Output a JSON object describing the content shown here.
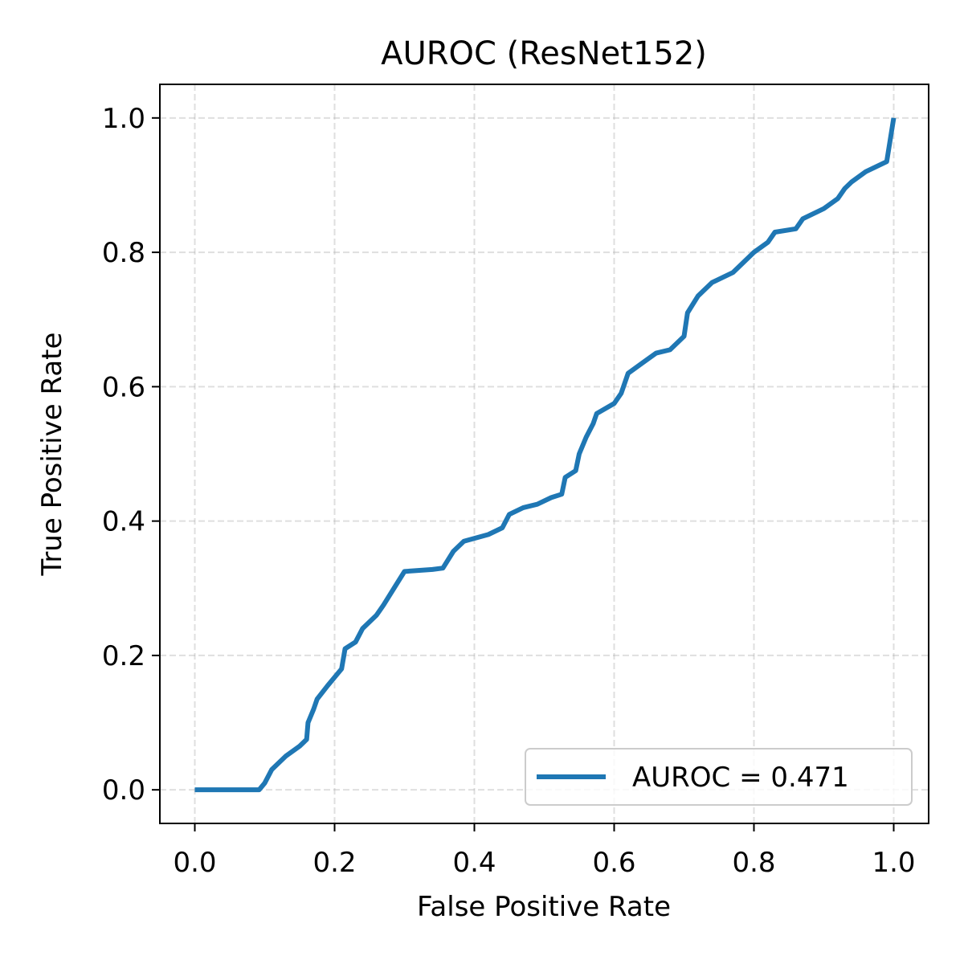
{
  "chart_data": {
    "type": "line",
    "title": "AUROC (ResNet152)",
    "xlabel": "False Positive Rate",
    "ylabel": "True Positive Rate",
    "x": [
      0,
      0.092,
      0.1,
      0.11,
      0.13,
      0.15,
      0.16,
      0.162,
      0.17,
      0.175,
      0.19,
      0.21,
      0.215,
      0.23,
      0.24,
      0.26,
      0.27,
      0.285,
      0.3,
      0.34,
      0.355,
      0.37,
      0.385,
      0.42,
      0.44,
      0.45,
      0.47,
      0.49,
      0.51,
      0.525,
      0.53,
      0.545,
      0.55,
      0.56,
      0.57,
      0.575,
      0.6,
      0.61,
      0.62,
      0.64,
      0.66,
      0.68,
      0.7,
      0.705,
      0.72,
      0.74,
      0.77,
      0.8,
      0.82,
      0.83,
      0.86,
      0.87,
      0.9,
      0.92,
      0.93,
      0.94,
      0.96,
      0.99,
      1.0
    ],
    "series": [
      {
        "name": "AUROC = 0.471",
        "color": "#1f77b4",
        "values": [
          0,
          0,
          0.01,
          0.03,
          0.05,
          0.065,
          0.075,
          0.1,
          0.12,
          0.135,
          0.155,
          0.18,
          0.21,
          0.22,
          0.24,
          0.26,
          0.275,
          0.3,
          0.325,
          0.328,
          0.33,
          0.355,
          0.37,
          0.38,
          0.39,
          0.41,
          0.42,
          0.425,
          0.435,
          0.44,
          0.465,
          0.475,
          0.5,
          0.525,
          0.545,
          0.56,
          0.575,
          0.59,
          0.62,
          0.635,
          0.65,
          0.655,
          0.675,
          0.71,
          0.735,
          0.755,
          0.77,
          0.8,
          0.815,
          0.83,
          0.835,
          0.85,
          0.865,
          0.88,
          0.895,
          0.905,
          0.92,
          0.935,
          1.0
        ]
      }
    ],
    "xlim": [
      -0.05,
      1.05
    ],
    "ylim": [
      -0.05,
      1.05
    ],
    "xticks": [
      {
        "value": 0,
        "label": "0.0"
      },
      0.2,
      0.4,
      0.6,
      0.8,
      {
        "value": 1,
        "label": "1.0"
      }
    ],
    "yticks": [
      {
        "value": 0,
        "label": "0.0"
      },
      0.2,
      0.4,
      0.6,
      0.8,
      {
        "value": 1,
        "label": "1.0"
      }
    ],
    "grid": true,
    "legend": "lower right"
  }
}
